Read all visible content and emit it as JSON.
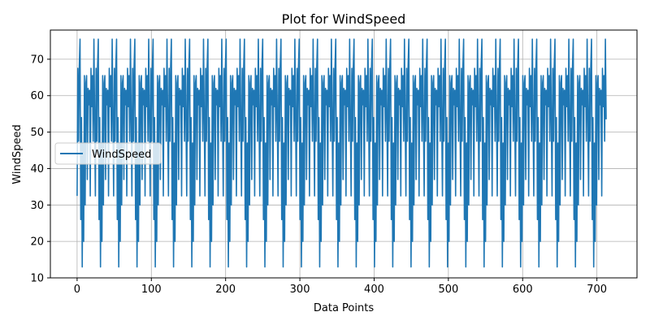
{
  "chart_data": {
    "type": "line",
    "title": "Plot for WindSpeed",
    "xlabel": "Data Points",
    "ylabel": "WindSpeed",
    "xlim": [
      -36,
      754
    ],
    "ylim": [
      10,
      78
    ],
    "xticks": [
      0,
      100,
      200,
      300,
      400,
      500,
      600,
      700
    ],
    "yticks": [
      10,
      20,
      30,
      40,
      50,
      60,
      70
    ],
    "grid": true,
    "legend": {
      "placement": "center-left",
      "entries": [
        "WindSpeed"
      ]
    },
    "series": [
      {
        "name": "WindSpeed",
        "color": "#1f77b4",
        "period": 24.6,
        "cycles": 29,
        "cycle_values": [
          32.5,
          67.5,
          47.5,
          68,
          75.5,
          26,
          54,
          13,
          47,
          20,
          65.5,
          30,
          63.5,
          65.5,
          37,
          62,
          57.5,
          61.5,
          32.5,
          67.5,
          57,
          65.5,
          47.5,
          75.5,
          53.5
        ],
        "x": [],
        "y": []
      }
    ]
  }
}
